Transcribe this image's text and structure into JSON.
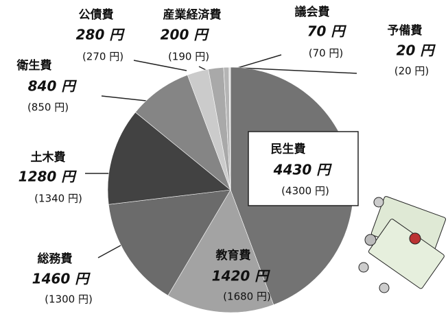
{
  "chart_data": {
    "type": "pie",
    "categories": [
      "民生費",
      "教育費",
      "総務費",
      "土木費",
      "衛生費",
      "公債費",
      "産業経済費",
      "議会費",
      "予備費"
    ],
    "values": [
      4430,
      1420,
      1460,
      1280,
      840,
      280,
      200,
      70,
      20
    ],
    "value_labels": [
      "4430 円",
      "1420 円",
      "1460 円",
      "1280 円",
      "840 円",
      "280 円",
      "200 円",
      "70 円",
      "20 円"
    ],
    "previous_labels": [
      "(4300 円)",
      "(1680 円)",
      "(1300 円)",
      "(1340 円)",
      "(850 円)",
      "(270 円)",
      "(190 円)",
      "(70 円)",
      "(20 円)"
    ],
    "colors": [
      "#737373",
      "#a3a3a3",
      "#6b6b6b",
      "#424242",
      "#858585",
      "#cbcbcb",
      "#a9a9a9",
      "#b5b5b5",
      "#e2e2e2"
    ]
  }
}
